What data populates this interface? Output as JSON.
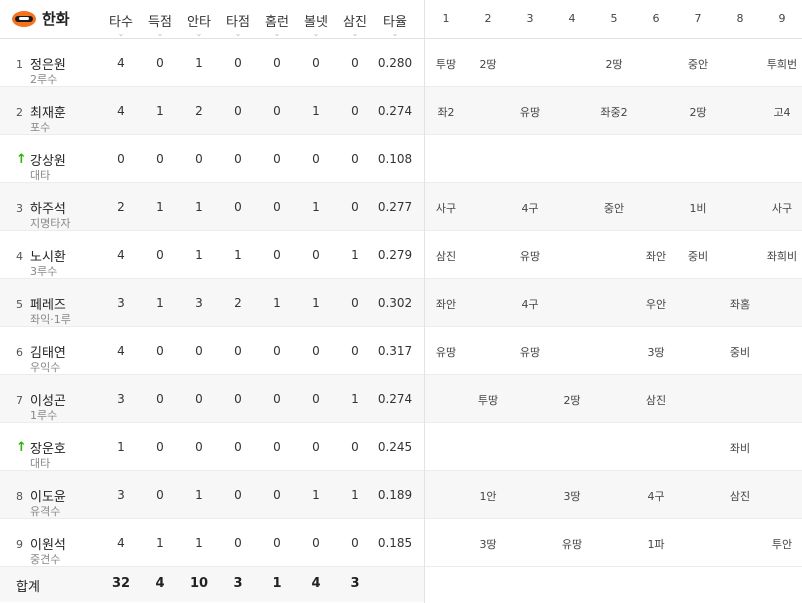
{
  "team": {
    "name": "한화",
    "logo_icon": "hanwha-eagles-logo-icon"
  },
  "columns": [
    "타수",
    "득점",
    "안타",
    "타점",
    "홈런",
    "볼넷",
    "삼진",
    "타율"
  ],
  "innings": [
    "1",
    "2",
    "3",
    "4",
    "5",
    "6",
    "7",
    "8",
    "9"
  ],
  "players": [
    {
      "order": "1",
      "sub": false,
      "name": "정은원",
      "pos": "2루수",
      "stats": [
        "4",
        "0",
        "1",
        "0",
        "0",
        "0",
        "0",
        "0.280"
      ],
      "inn": [
        "투땅",
        "2땅",
        "",
        "",
        "2땅",
        "",
        "중안",
        "",
        "투희번"
      ]
    },
    {
      "order": "2",
      "sub": false,
      "name": "최재훈",
      "pos": "포수",
      "stats": [
        "4",
        "1",
        "2",
        "0",
        "0",
        "1",
        "0",
        "0.274"
      ],
      "inn": [
        "좌2",
        "",
        "유땅",
        "",
        "좌중2",
        "",
        "2땅",
        "",
        "고4"
      ]
    },
    {
      "order": "",
      "sub": true,
      "name": "강상원",
      "pos": "대타",
      "stats": [
        "0",
        "0",
        "0",
        "0",
        "0",
        "0",
        "0",
        "0.108"
      ],
      "inn": [
        "",
        "",
        "",
        "",
        "",
        "",
        "",
        "",
        ""
      ]
    },
    {
      "order": "3",
      "sub": false,
      "name": "하주석",
      "pos": "지명타자",
      "stats": [
        "2",
        "1",
        "1",
        "0",
        "0",
        "1",
        "0",
        "0.277"
      ],
      "inn": [
        "사구",
        "",
        "4구",
        "",
        "중안",
        "",
        "1비",
        "",
        "사구"
      ]
    },
    {
      "order": "4",
      "sub": false,
      "name": "노시환",
      "pos": "3루수",
      "stats": [
        "4",
        "0",
        "1",
        "1",
        "0",
        "0",
        "1",
        "0.279"
      ],
      "inn": [
        "삼진",
        "",
        "유땅",
        "",
        "",
        "좌안",
        "중비",
        "",
        "좌희비"
      ]
    },
    {
      "order": "5",
      "sub": false,
      "name": "페레즈",
      "pos": "좌익·1루",
      "stats": [
        "3",
        "1",
        "3",
        "2",
        "1",
        "1",
        "0",
        "0.302"
      ],
      "inn": [
        "좌안",
        "",
        "4구",
        "",
        "",
        "우안",
        "",
        "좌홈",
        ""
      ]
    },
    {
      "order": "6",
      "sub": false,
      "name": "김태연",
      "pos": "우익수",
      "stats": [
        "4",
        "0",
        "0",
        "0",
        "0",
        "0",
        "0",
        "0.317"
      ],
      "inn": [
        "유땅",
        "",
        "유땅",
        "",
        "",
        "3땅",
        "",
        "중비",
        ""
      ]
    },
    {
      "order": "7",
      "sub": false,
      "name": "이성곤",
      "pos": "1루수",
      "stats": [
        "3",
        "0",
        "0",
        "0",
        "0",
        "0",
        "1",
        "0.274"
      ],
      "inn": [
        "",
        "투땅",
        "",
        "2땅",
        "",
        "삼진",
        "",
        "",
        ""
      ]
    },
    {
      "order": "",
      "sub": true,
      "name": "장운호",
      "pos": "대타",
      "stats": [
        "1",
        "0",
        "0",
        "0",
        "0",
        "0",
        "0",
        "0.245"
      ],
      "inn": [
        "",
        "",
        "",
        "",
        "",
        "",
        "",
        "좌비",
        ""
      ]
    },
    {
      "order": "8",
      "sub": false,
      "name": "이도윤",
      "pos": "유격수",
      "stats": [
        "3",
        "0",
        "1",
        "0",
        "0",
        "1",
        "1",
        "0.189"
      ],
      "inn": [
        "",
        "1안",
        "",
        "3땅",
        "",
        "4구",
        "",
        "삼진",
        ""
      ]
    },
    {
      "order": "9",
      "sub": false,
      "name": "이원석",
      "pos": "중견수",
      "stats": [
        "4",
        "1",
        "1",
        "0",
        "0",
        "0",
        "0",
        "0.185"
      ],
      "inn": [
        "",
        "3땅",
        "",
        "유땅",
        "",
        "1파",
        "",
        "",
        "투안"
      ]
    }
  ],
  "total": {
    "label": "합계",
    "stats": [
      "32",
      "4",
      "10",
      "3",
      "1",
      "4",
      "3"
    ]
  },
  "colors": {
    "logo": "#f37321",
    "sub_arrow": "#2db400"
  }
}
